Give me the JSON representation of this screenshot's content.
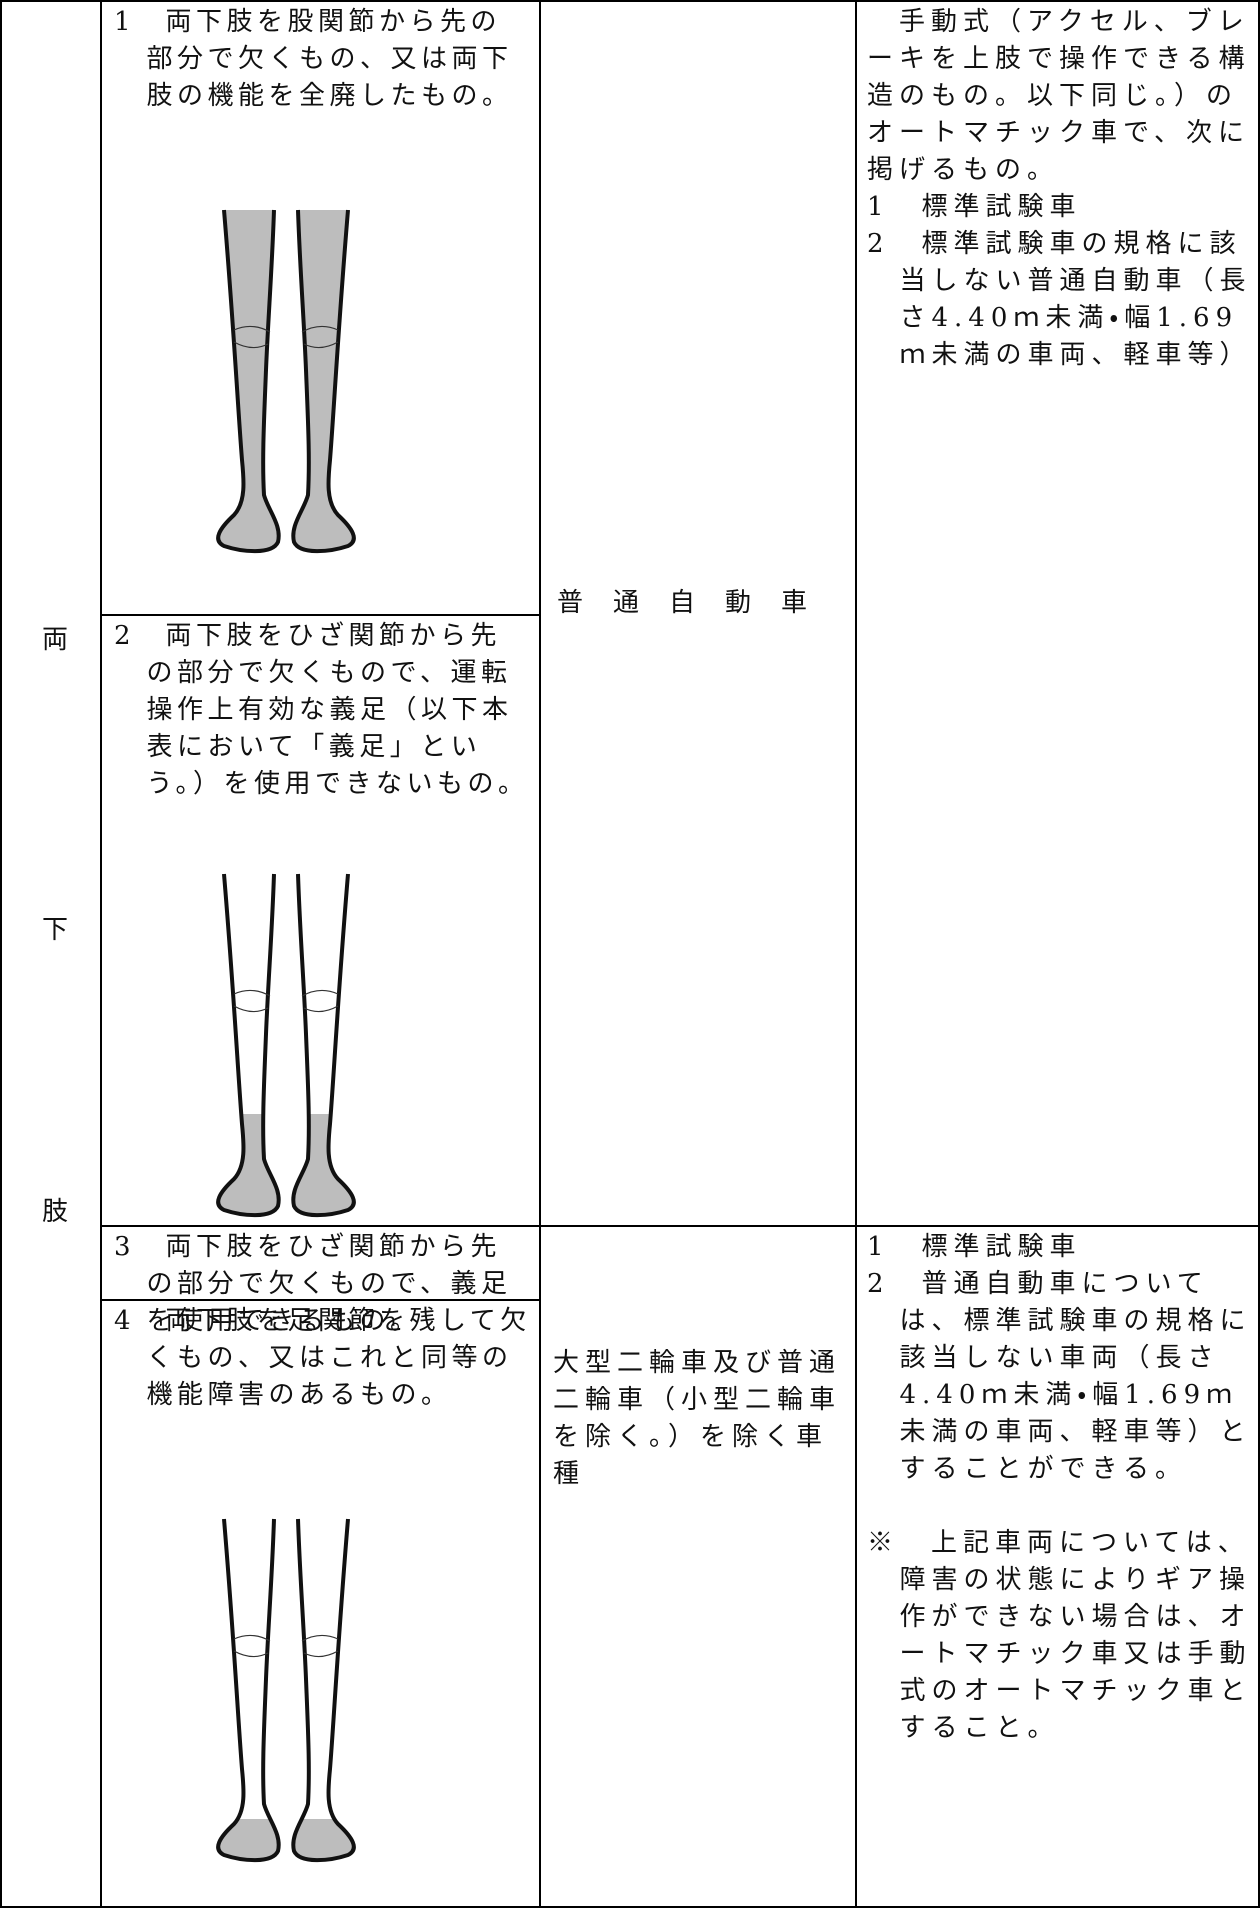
{
  "table": {
    "side_label": [
      "両",
      "下",
      "肢"
    ],
    "rows": [
      {
        "conditions": [
          "1　両下肢を股関節から先の部分で欠くもの、又は両下肢の機能を全廃したもの。",
          "2　両下肢をひざ関節から先の部分で欠くもので、運転操作上有効な義足（以下本表において「義足」という。）を使用できないもの。"
        ],
        "vehicle": "普通自動車",
        "requirement": [
          "　手動式（アクセル、ブレーキを上肢で操作できる構造のもの。以下同じ。）のオートマチック車で、次に掲げるもの。",
          "1　標準試験車",
          "2　標準試験車の規格に該当しない普通自動車（長さ4.40ｍ未満・幅1.69ｍ未満の車両、軽車等）"
        ]
      },
      {
        "conditions": [
          "3　両下肢をひざ関節から先の部分で欠くもので、義足を使用できるもの。",
          "4　両下肢を足関節を残して欠くもの、又はこれと同等の機能障害のあるもの。"
        ],
        "vehicle": "大型二輪車及び普通二輪車（小型二輪車を除く。）を除く車種",
        "requirement": [
          "1　標準試験車",
          "2　普通自動車については、標準試験車の規格に該当しない車両（長さ4.40ｍ未満・幅1.69ｍ未満の車両、軽車等）とすることができる。",
          "※　上記車両については、障害の状態によりギア操作ができない場合は、オートマチック車又は手動式のオートマチック車とすること。"
        ]
      }
    ]
  }
}
